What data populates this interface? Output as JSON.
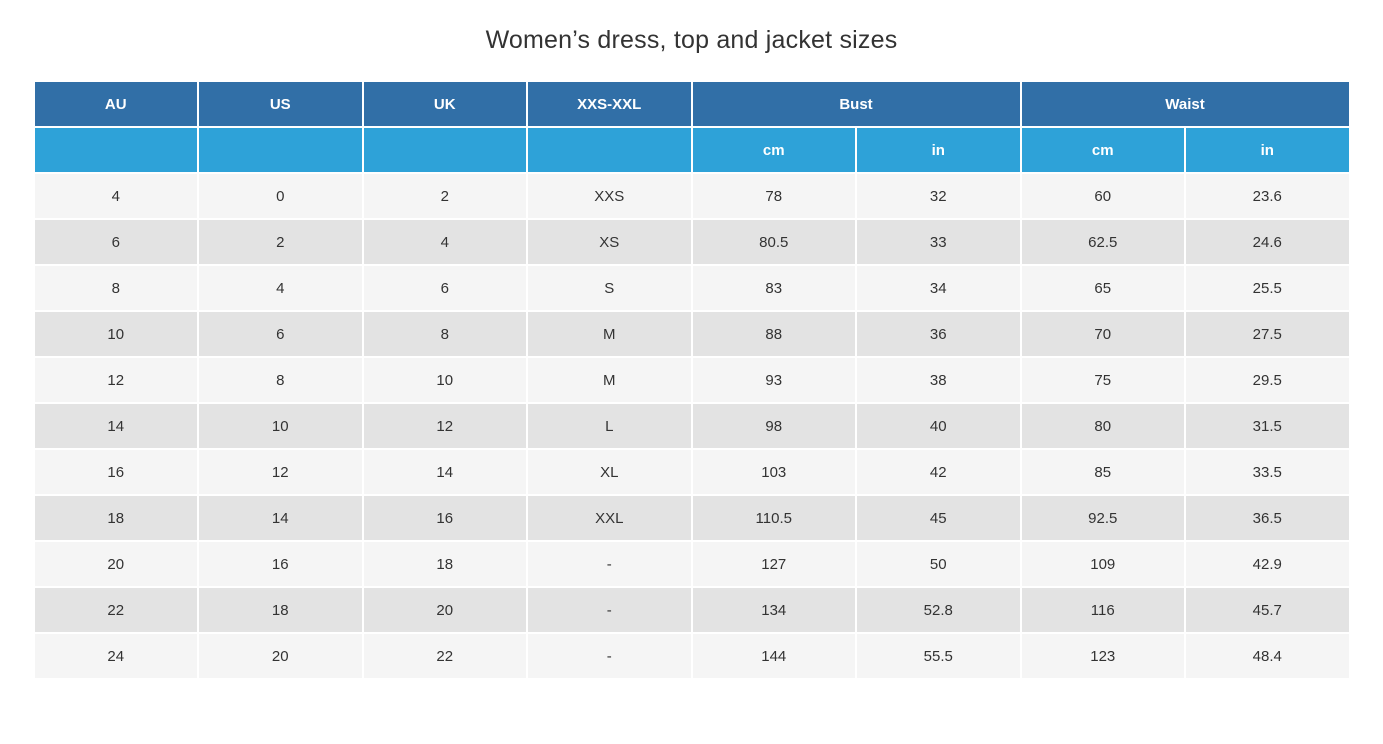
{
  "title": "Women’s dress, top and jacket sizes",
  "table": {
    "group_headers": [
      "AU",
      "US",
      "UK",
      "XXS-XXL",
      "Bust",
      "Waist"
    ],
    "sub_headers": [
      "",
      "",
      "",
      "",
      "cm",
      "in",
      "cm",
      "in"
    ],
    "rows": [
      [
        "4",
        "0",
        "2",
        "XXS",
        "78",
        "32",
        "60",
        "23.6"
      ],
      [
        "6",
        "2",
        "4",
        "XS",
        "80.5",
        "33",
        "62.5",
        "24.6"
      ],
      [
        "8",
        "4",
        "6",
        "S",
        "83",
        "34",
        "65",
        "25.5"
      ],
      [
        "10",
        "6",
        "8",
        "M",
        "88",
        "36",
        "70",
        "27.5"
      ],
      [
        "12",
        "8",
        "10",
        "M",
        "93",
        "38",
        "75",
        "29.5"
      ],
      [
        "14",
        "10",
        "12",
        "L",
        "98",
        "40",
        "80",
        "31.5"
      ],
      [
        "16",
        "12",
        "14",
        "XL",
        "103",
        "42",
        "85",
        "33.5"
      ],
      [
        "18",
        "14",
        "16",
        "XXL",
        "110.5",
        "45",
        "92.5",
        "36.5"
      ],
      [
        "20",
        "16",
        "18",
        "-",
        "127",
        "50",
        "109",
        "42.9"
      ],
      [
        "22",
        "18",
        "20",
        "-",
        "134",
        "52.8",
        "116",
        "45.7"
      ],
      [
        "24",
        "20",
        "22",
        "-",
        "144",
        "55.5",
        "123",
        "48.4"
      ]
    ]
  },
  "colors": {
    "header_dark": "#316FA7",
    "header_light": "#2EA2D8",
    "row_odd": "#F5F5F5",
    "row_even": "#E3E3E3",
    "cell_text": "#333333",
    "header_text": "#FFFFFF"
  }
}
